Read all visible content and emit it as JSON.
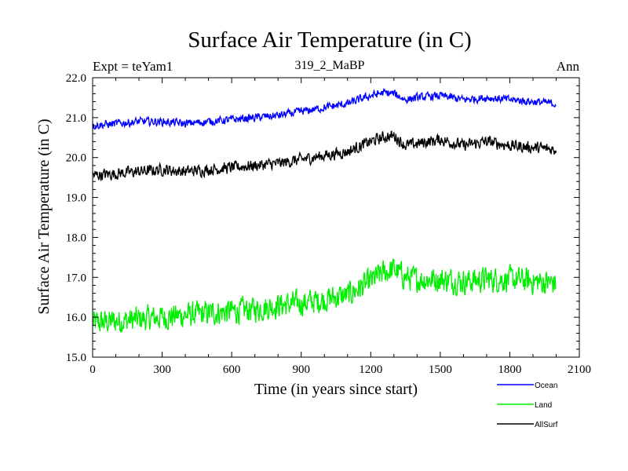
{
  "chart_data": {
    "type": "line",
    "title": "Surface Air Temperature (in C)",
    "subtitle": "319_2_MaBP",
    "left_label": "Expt = teYam1",
    "right_label": "Ann",
    "xlabel": "Time (in years since start)",
    "ylabel": "Surface Air Temperature (in C)",
    "xlim": [
      0,
      2100
    ],
    "ylim": [
      15.0,
      22.0
    ],
    "x_ticks": [
      0,
      300,
      600,
      900,
      1200,
      1500,
      1800,
      2100
    ],
    "x_tick_labels": [
      "0",
      "300",
      "600",
      "900",
      "1200",
      "1500",
      "1800",
      "2100"
    ],
    "y_ticks": [
      15.0,
      16.0,
      17.0,
      18.0,
      19.0,
      20.0,
      21.0,
      22.0
    ],
    "y_tick_labels": [
      "15.0",
      "16.0",
      "17.0",
      "18.0",
      "19.0",
      "20.0",
      "21.0",
      "22.0"
    ],
    "grid": false,
    "legend_position": "bottom-right",
    "series": [
      {
        "name": "Ocean",
        "color": "#0000ff",
        "x": [
          0,
          100,
          200,
          300,
          400,
          500,
          600,
          700,
          800,
          900,
          1000,
          1100,
          1200,
          1250,
          1300,
          1350,
          1400,
          1500,
          1600,
          1700,
          1800,
          1900,
          2000
        ],
        "values": [
          20.8,
          20.85,
          20.9,
          20.9,
          20.85,
          20.9,
          20.95,
          21.0,
          21.05,
          21.15,
          21.25,
          21.35,
          21.55,
          21.62,
          21.6,
          21.45,
          21.5,
          21.55,
          21.45,
          21.5,
          21.45,
          21.4,
          21.35
        ],
        "noise": 0.09
      },
      {
        "name": "Land",
        "color": "#00ee00",
        "x": [
          0,
          100,
          200,
          300,
          400,
          500,
          600,
          700,
          800,
          900,
          1000,
          1100,
          1200,
          1250,
          1300,
          1350,
          1400,
          1500,
          1600,
          1700,
          1800,
          1900,
          2000
        ],
        "values": [
          15.85,
          15.9,
          15.95,
          16.0,
          16.05,
          16.1,
          16.15,
          16.2,
          16.3,
          16.35,
          16.45,
          16.55,
          16.9,
          17.1,
          17.2,
          17.0,
          16.95,
          16.95,
          16.9,
          16.95,
          16.95,
          16.9,
          16.85
        ],
        "noise": 0.28
      },
      {
        "name": "AllSurf",
        "color": "#000000",
        "x": [
          0,
          100,
          200,
          300,
          400,
          500,
          600,
          700,
          800,
          900,
          1000,
          1100,
          1200,
          1250,
          1300,
          1350,
          1400,
          1500,
          1600,
          1700,
          1800,
          1900,
          2000
        ],
        "values": [
          19.55,
          19.6,
          19.65,
          19.7,
          19.65,
          19.7,
          19.75,
          19.8,
          19.85,
          19.95,
          20.05,
          20.15,
          20.4,
          20.5,
          20.55,
          20.3,
          20.35,
          20.45,
          20.3,
          20.4,
          20.3,
          20.25,
          20.2
        ],
        "noise": 0.13
      }
    ]
  }
}
